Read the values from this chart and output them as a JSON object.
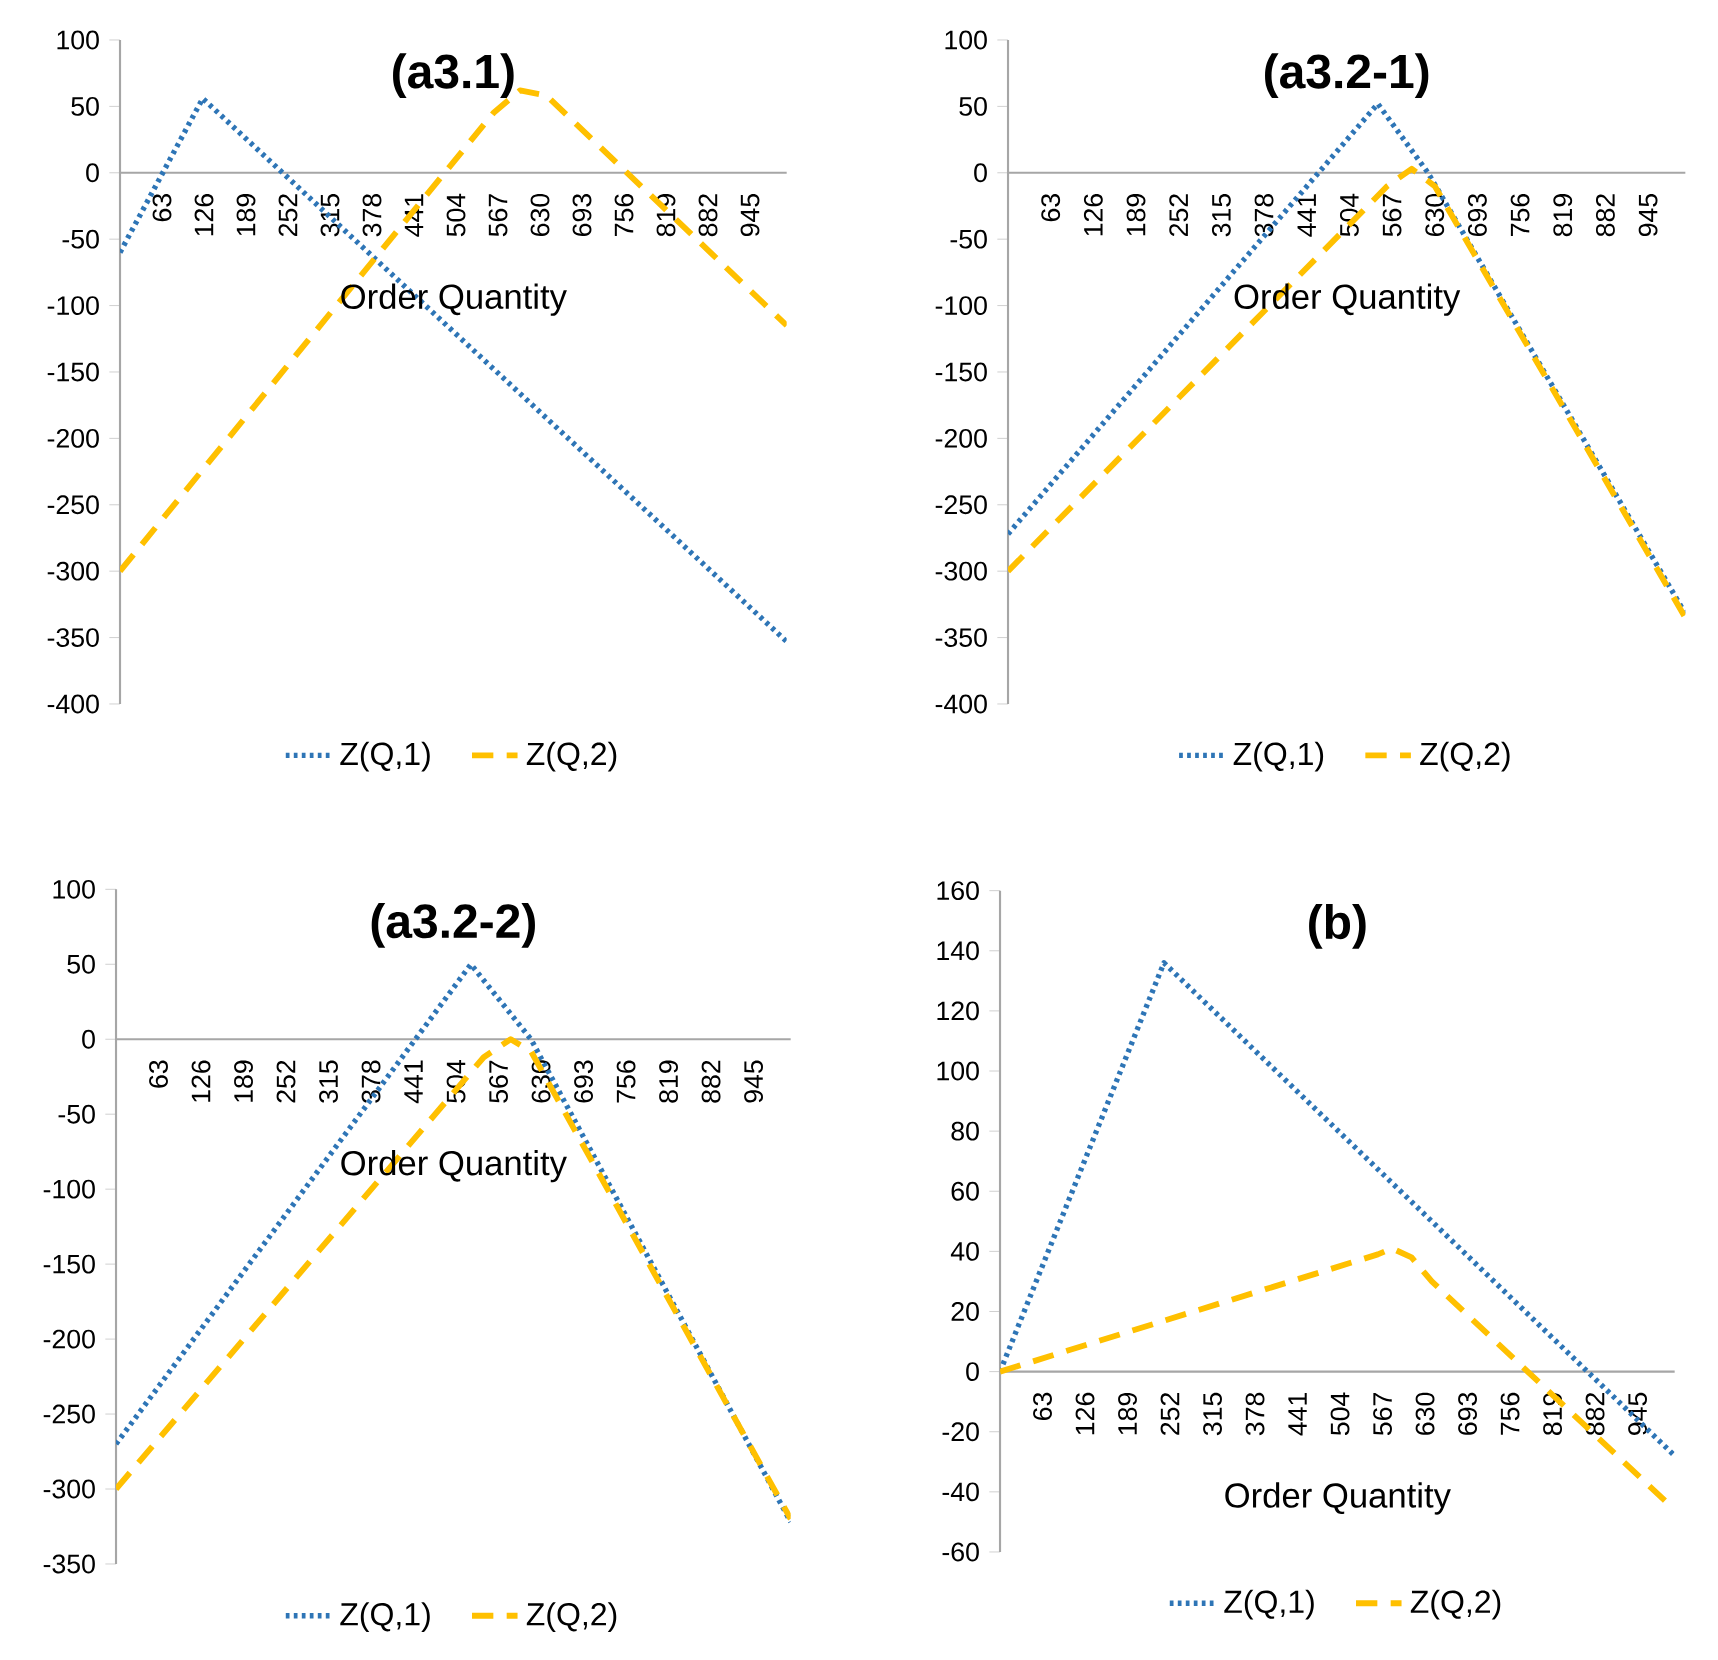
{
  "chart_data": [
    {
      "type": "line",
      "title": "(a3.1)",
      "xlabel": "Order Quantity",
      "xlim": [
        0,
        1000
      ],
      "xticks": [
        63,
        126,
        189,
        252,
        315,
        378,
        441,
        504,
        567,
        630,
        693,
        756,
        819,
        882,
        945
      ],
      "ylim": [
        -400,
        100
      ],
      "yticks": [
        -400,
        -350,
        -300,
        -250,
        -200,
        -150,
        -100,
        -50,
        0,
        50,
        100
      ],
      "legend": "bottom",
      "series": [
        {
          "name": "Z(Q,1)",
          "color": "#2e75b6",
          "line_style": "dotted",
          "x": [
            0,
            124,
            1000
          ],
          "values": [
            -60,
            56,
            -353
          ]
        },
        {
          "name": "Z(Q,2)",
          "color": "#ffc000",
          "line_style": "dashed",
          "x": [
            0,
            560,
            600,
            640,
            1000
          ],
          "values": [
            -300,
            45,
            62,
            58,
            -115
          ]
        }
      ]
    },
    {
      "type": "line",
      "title": "(a3.2-1)",
      "xlabel": "Order Quantity",
      "xlim": [
        0,
        1000
      ],
      "xticks": [
        63,
        126,
        189,
        252,
        315,
        378,
        441,
        504,
        567,
        630,
        693,
        756,
        819,
        882,
        945
      ],
      "ylim": [
        -400,
        100
      ],
      "yticks": [
        -400,
        -350,
        -300,
        -250,
        -200,
        -150,
        -100,
        -50,
        0,
        50,
        100
      ],
      "legend": "bottom",
      "series": [
        {
          "name": "Z(Q,1)",
          "color": "#2e75b6",
          "line_style": "dotted",
          "x": [
            0,
            546,
            620,
            1000
          ],
          "values": [
            -272,
            52,
            0,
            -332
          ]
        },
        {
          "name": "Z(Q,2)",
          "color": "#ffc000",
          "line_style": "dashed",
          "x": [
            0,
            560,
            596,
            630,
            1000
          ],
          "values": [
            -300,
            -10,
            3,
            -10,
            -335
          ]
        }
      ]
    },
    {
      "type": "line",
      "title": "(a3.2-2)",
      "xlabel": "Order Quantity",
      "xlim": [
        0,
        1000
      ],
      "xticks": [
        63,
        126,
        189,
        252,
        315,
        378,
        441,
        504,
        567,
        630,
        693,
        756,
        819,
        882,
        945
      ],
      "ylim": [
        -350,
        100
      ],
      "yticks": [
        -350,
        -300,
        -250,
        -200,
        -150,
        -100,
        -50,
        0,
        50,
        100
      ],
      "legend": "bottom",
      "series": [
        {
          "name": "Z(Q,1)",
          "color": "#2e75b6",
          "line_style": "dotted",
          "x": [
            0,
            526,
            615,
            1000
          ],
          "values": [
            -270,
            50,
            0,
            -322
          ]
        },
        {
          "name": "Z(Q,2)",
          "color": "#ffc000",
          "line_style": "dashed",
          "x": [
            0,
            545,
            585,
            615,
            1000
          ],
          "values": [
            -300,
            -12,
            0,
            -8,
            -320
          ]
        }
      ]
    },
    {
      "type": "line",
      "title": "(b)",
      "xlabel": "Order Quantity",
      "xlim": [
        0,
        1000
      ],
      "xticks": [
        63,
        126,
        189,
        252,
        315,
        378,
        441,
        504,
        567,
        630,
        693,
        756,
        819,
        882,
        945
      ],
      "ylim": [
        -60,
        160
      ],
      "yticks": [
        -60,
        -40,
        -20,
        0,
        20,
        40,
        60,
        80,
        100,
        120,
        140,
        160
      ],
      "legend": "bottom",
      "series": [
        {
          "name": "Z(Q,1)",
          "color": "#2e75b6",
          "line_style": "dotted",
          "x": [
            0,
            243,
            1000
          ],
          "values": [
            0,
            136,
            -28
          ]
        },
        {
          "name": "Z(Q,2)",
          "color": "#ffc000",
          "line_style": "dashed",
          "x": [
            0,
            560,
            581,
            610,
            640,
            1000
          ],
          "values": [
            0,
            39,
            41,
            38,
            30,
            -46
          ]
        }
      ]
    }
  ]
}
